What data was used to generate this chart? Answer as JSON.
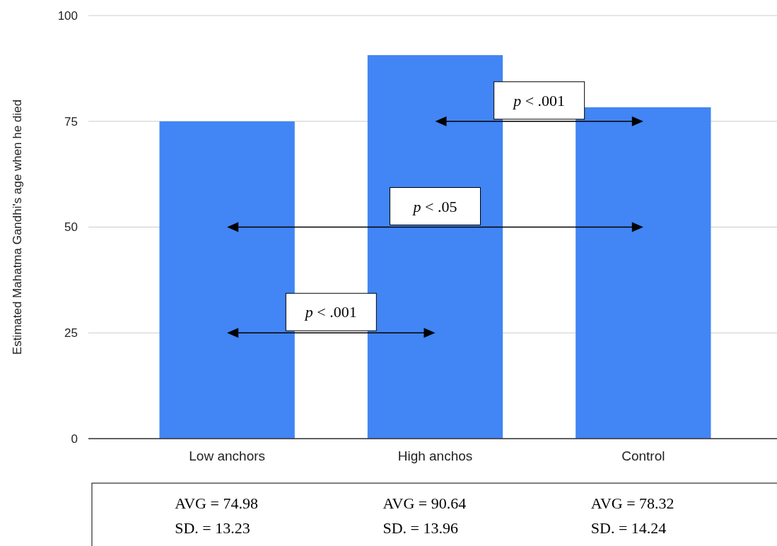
{
  "chart_data": {
    "type": "bar",
    "ylabel": "Estimated Mahatma Gandhi's age when he died",
    "categories": [
      "Low anchors",
      "High anchos",
      "Control"
    ],
    "values": [
      74.98,
      90.64,
      78.32
    ],
    "color": "#4285f4",
    "value_labels": [
      "AVG = 74.98",
      "AVG = 90.64",
      "AVG = 78.32"
    ],
    "ylim": [
      0,
      100
    ],
    "yticks": [
      0,
      25,
      50,
      75,
      100
    ],
    "grid": "y",
    "annotations": [
      "p < .001",
      "p < .05",
      "p < .001",
      "SD. = 13.23",
      "SD. = 13.96",
      "SD. = 14.24"
    ]
  }
}
